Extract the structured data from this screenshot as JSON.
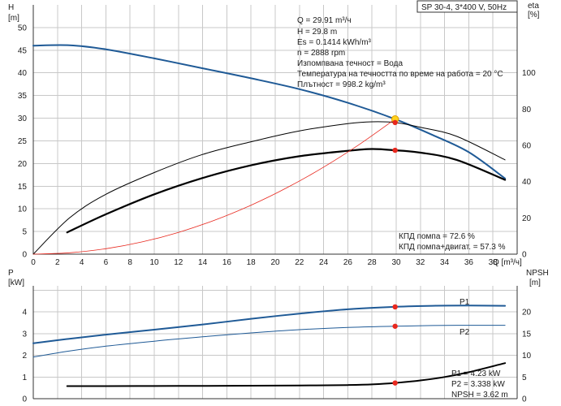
{
  "colors": {
    "head": "#1f5a96",
    "eta": "#000000",
    "red_curve": "#e8281e",
    "operating_point": "#e8281e",
    "duty_point_fill": "#ffd21e",
    "grid": "#c8c8c8"
  },
  "chart_data": [
    {
      "type": "line",
      "title": "SP 30-4, 3*400 V, 50Hz",
      "xlabel": "Q [m³/ч]",
      "xlim": [
        0,
        40
      ],
      "x_ticks": [
        "0",
        "2",
        "4",
        "6",
        "8",
        "10",
        "12",
        "14",
        "16",
        "18",
        "20",
        "22",
        "24",
        "26",
        "28",
        "30",
        "32",
        "34",
        "36",
        "38"
      ],
      "y_left": {
        "label_top": "H",
        "label_unit": "[m]",
        "lim": [
          0,
          55
        ],
        "ticks": [
          "0",
          "5",
          "10",
          "15",
          "20",
          "25",
          "30",
          "35",
          "40",
          "45",
          "50"
        ]
      },
      "y_right": {
        "label_top": "eta",
        "label_unit": "[%]",
        "lim": [
          0,
          137.5
        ],
        "ticks": [
          "0",
          "20",
          "40",
          "60",
          "80",
          "100"
        ]
      },
      "series": [
        {
          "axis": "left",
          "color": "#1f5a96",
          "width": 2,
          "x": [
            0,
            3,
            6,
            10,
            14,
            18,
            22,
            26,
            29.91,
            33,
            36,
            39
          ],
          "y": [
            46,
            46.1,
            45.2,
            43.2,
            41,
            38.8,
            36.4,
            33.4,
            29.8,
            26.3,
            22.5,
            16.7
          ]
        },
        {
          "axis": "right",
          "color": "#000000",
          "width": 1,
          "x": [
            0,
            3,
            6,
            10,
            14,
            18,
            22,
            26,
            28,
            29.91,
            32,
            35,
            39
          ],
          "y": [
            0,
            20,
            33,
            45,
            55,
            62,
            68,
            72,
            73,
            72.6,
            70,
            65,
            52
          ]
        },
        {
          "axis": "right",
          "color": "#000000",
          "width": 2.2,
          "x": [
            2.8,
            6,
            10,
            14,
            18,
            22,
            26,
            28,
            29.91,
            32,
            35,
            39
          ],
          "y": [
            12,
            22,
            33,
            42,
            49,
            54,
            57,
            58,
            57.3,
            56,
            52,
            41
          ]
        },
        {
          "axis": "left",
          "color": "#e8281e",
          "width": 0.8,
          "x": [
            0,
            3,
            6,
            9,
            12,
            15,
            18,
            21,
            24,
            27,
            29.91
          ],
          "y": [
            0,
            0.3,
            1.2,
            2.7,
            4.8,
            7.5,
            10.8,
            14.7,
            19.2,
            24.3,
            29.8
          ]
        }
      ],
      "points": [
        {
          "axis": "left",
          "x": 29.91,
          "y": 29.8,
          "kind": "duty"
        },
        {
          "axis": "right",
          "x": 29.91,
          "y": 72.6,
          "kind": "operating"
        },
        {
          "axis": "right",
          "x": 29.91,
          "y": 57.3,
          "kind": "operating"
        }
      ],
      "info": [
        "Q = 29.91 m³/ч",
        "H = 29.8 m",
        "Es = 0.1414 kWh/m³",
        "n = 2888 rpm",
        "Изпомпвана течност = Вода",
        "Температура на течността по време на работа = 20 °C",
        "Плътност = 998.2 kg/m³"
      ],
      "efficiency_labels": [
        "КПД помпа = 72.6 %",
        "КПД помпа+двигат. = 57.3 %"
      ]
    },
    {
      "type": "line",
      "xlim": [
        0,
        40
      ],
      "y_left": {
        "label_top": "P",
        "label_unit": "[kW]",
        "lim": [
          0,
          5.2
        ],
        "ticks": [
          "0",
          "1",
          "2",
          "3",
          "4"
        ]
      },
      "y_right": {
        "label_top": "NPSH",
        "label_unit": "[m]",
        "lim": [
          0,
          26
        ],
        "ticks": [
          "0",
          "5",
          "10",
          "15",
          "20"
        ]
      },
      "series": [
        {
          "name": "P1",
          "axis": "left",
          "color": "#1f5a96",
          "width": 2,
          "x": [
            0,
            2.8,
            6,
            10,
            14,
            18,
            22,
            26,
            29.91,
            33,
            36,
            39
          ],
          "y": [
            2.55,
            2.75,
            2.95,
            3.18,
            3.42,
            3.68,
            3.92,
            4.12,
            4.23,
            4.28,
            4.29,
            4.28
          ]
        },
        {
          "name": "P2",
          "axis": "left",
          "color": "#1f5a96",
          "width": 1,
          "x": [
            0,
            3,
            6,
            10,
            14,
            18,
            22,
            26,
            29.91,
            33,
            36,
            39
          ],
          "y": [
            1.92,
            2.2,
            2.42,
            2.65,
            2.85,
            3.03,
            3.18,
            3.28,
            3.338,
            3.37,
            3.38,
            3.38
          ]
        },
        {
          "name": "NPSH",
          "axis": "right",
          "color": "#000000",
          "width": 2,
          "x": [
            2.8,
            6,
            10,
            14,
            18,
            22,
            26,
            28,
            29.91,
            32,
            34,
            36,
            39
          ],
          "y": [
            2.9,
            2.9,
            2.92,
            2.95,
            3.0,
            3.05,
            3.15,
            3.3,
            3.62,
            4.2,
            5.0,
            6.1,
            8.2
          ]
        }
      ],
      "points": [
        {
          "axis": "left",
          "x": 29.91,
          "y": 4.23,
          "kind": "operating"
        },
        {
          "axis": "left",
          "x": 29.91,
          "y": 3.338,
          "kind": "operating"
        },
        {
          "axis": "right",
          "x": 29.91,
          "y": 3.62,
          "kind": "operating"
        }
      ],
      "series_labels": [
        "P1",
        "P2"
      ],
      "readouts": [
        "P1 = 4.23 kW",
        "P2 = 3.338 kW",
        "NPSH = 3.62 m"
      ]
    }
  ]
}
